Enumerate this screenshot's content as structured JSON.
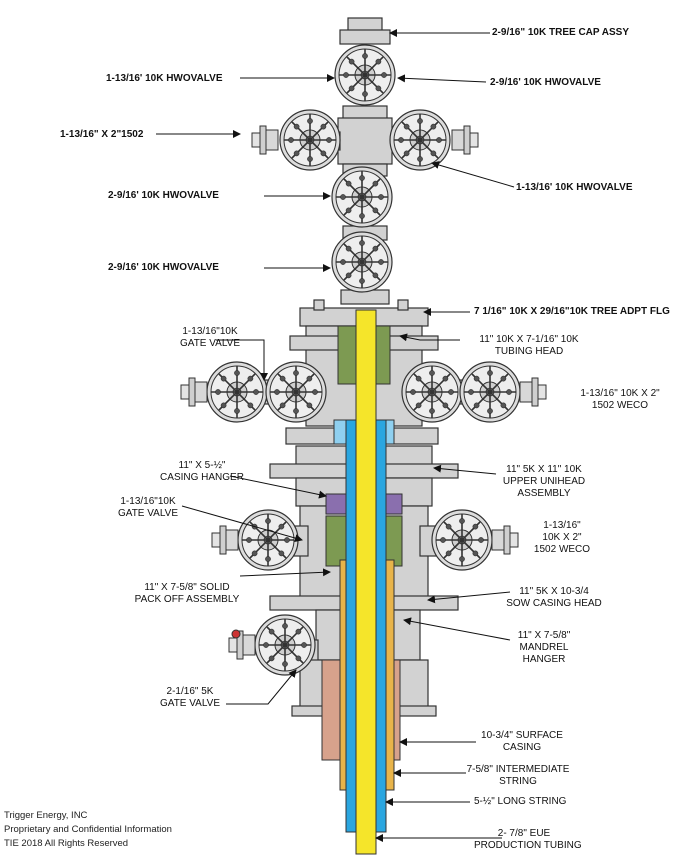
{
  "labels": {
    "tree_cap": "2-9/16\" 10K TREE CAP ASSY",
    "hwo_top_left": "1-13/16' 10K HWOVALVE",
    "hwo_top_right": "2-9/16' 10K HWOVALVE",
    "wing_left": "1-13/16\" X 2\"1502",
    "wing_right": "1-13/16' 10K HWOVALVE",
    "hwo_mid": "2-9/16' 10K HWOVALVE",
    "hwo_lower": "2-9/16' 10K HWOVALVE",
    "tree_adpt": "7 1/16\" 10K X 29/16\"10K TREE ADPT FLG",
    "gate_valve_1": [
      "1-13/16\"10K",
      "GATE VALVE"
    ],
    "tubing_head": [
      "11\" 10K X 7-1/16\" 10K",
      "TUBING HEAD"
    ],
    "weco_1": [
      "1-13/16\" 10K X 2\"",
      "1502 WECO"
    ],
    "casing_hanger": [
      "11\" X 5-½\"",
      "CASING HANGER"
    ],
    "upper_unihead": [
      "11\" 5K X 11\" 10K",
      "UPPER UNIHEAD",
      "ASSEMBLY"
    ],
    "gate_valve_2": [
      "1-13/16\"10K",
      "GATE VALVE"
    ],
    "weco_2": [
      "1-13/16\"",
      "10K X 2\"",
      "1502 WECO"
    ],
    "pack_off": [
      "11\" X 7-5/8\" SOLID",
      "PACK OFF ASSEMBLY"
    ],
    "sow_casing": [
      "11\" 5K X 10-3/4",
      "SOW CASING HEAD"
    ],
    "mandrel": [
      "11\" X 7-5/8\"",
      "MANDREL",
      "HANGER"
    ],
    "gate_valve_3": [
      "2-1/16\" 5K",
      "GATE VALVE"
    ],
    "surface_casing": [
      "10-3/4\" SURFACE",
      "CASING"
    ],
    "intermediate": [
      "7-5/8\" INTERMEDIATE",
      "STRING"
    ],
    "long_string": "5-½\" LONG STRING",
    "production": [
      "2- 7/8\" EUE",
      "PRODUCTION TUBING"
    ]
  },
  "footer": {
    "line1": "Trigger Energy, INC",
    "line2": "Proprietary and Confidential Information",
    "line3": "TIE 2018 All Rights Reserved"
  },
  "colors": {
    "body": "#d2d2d2",
    "outline": "#333333",
    "tubing": "#f5e52a",
    "long_string": "#2aa6e0",
    "green": "#7d9a52",
    "purple": "#8a6fae",
    "navy": "#1f2e6a",
    "surface_casing": "#d7a28c",
    "intermediate": "#e8b44a"
  }
}
